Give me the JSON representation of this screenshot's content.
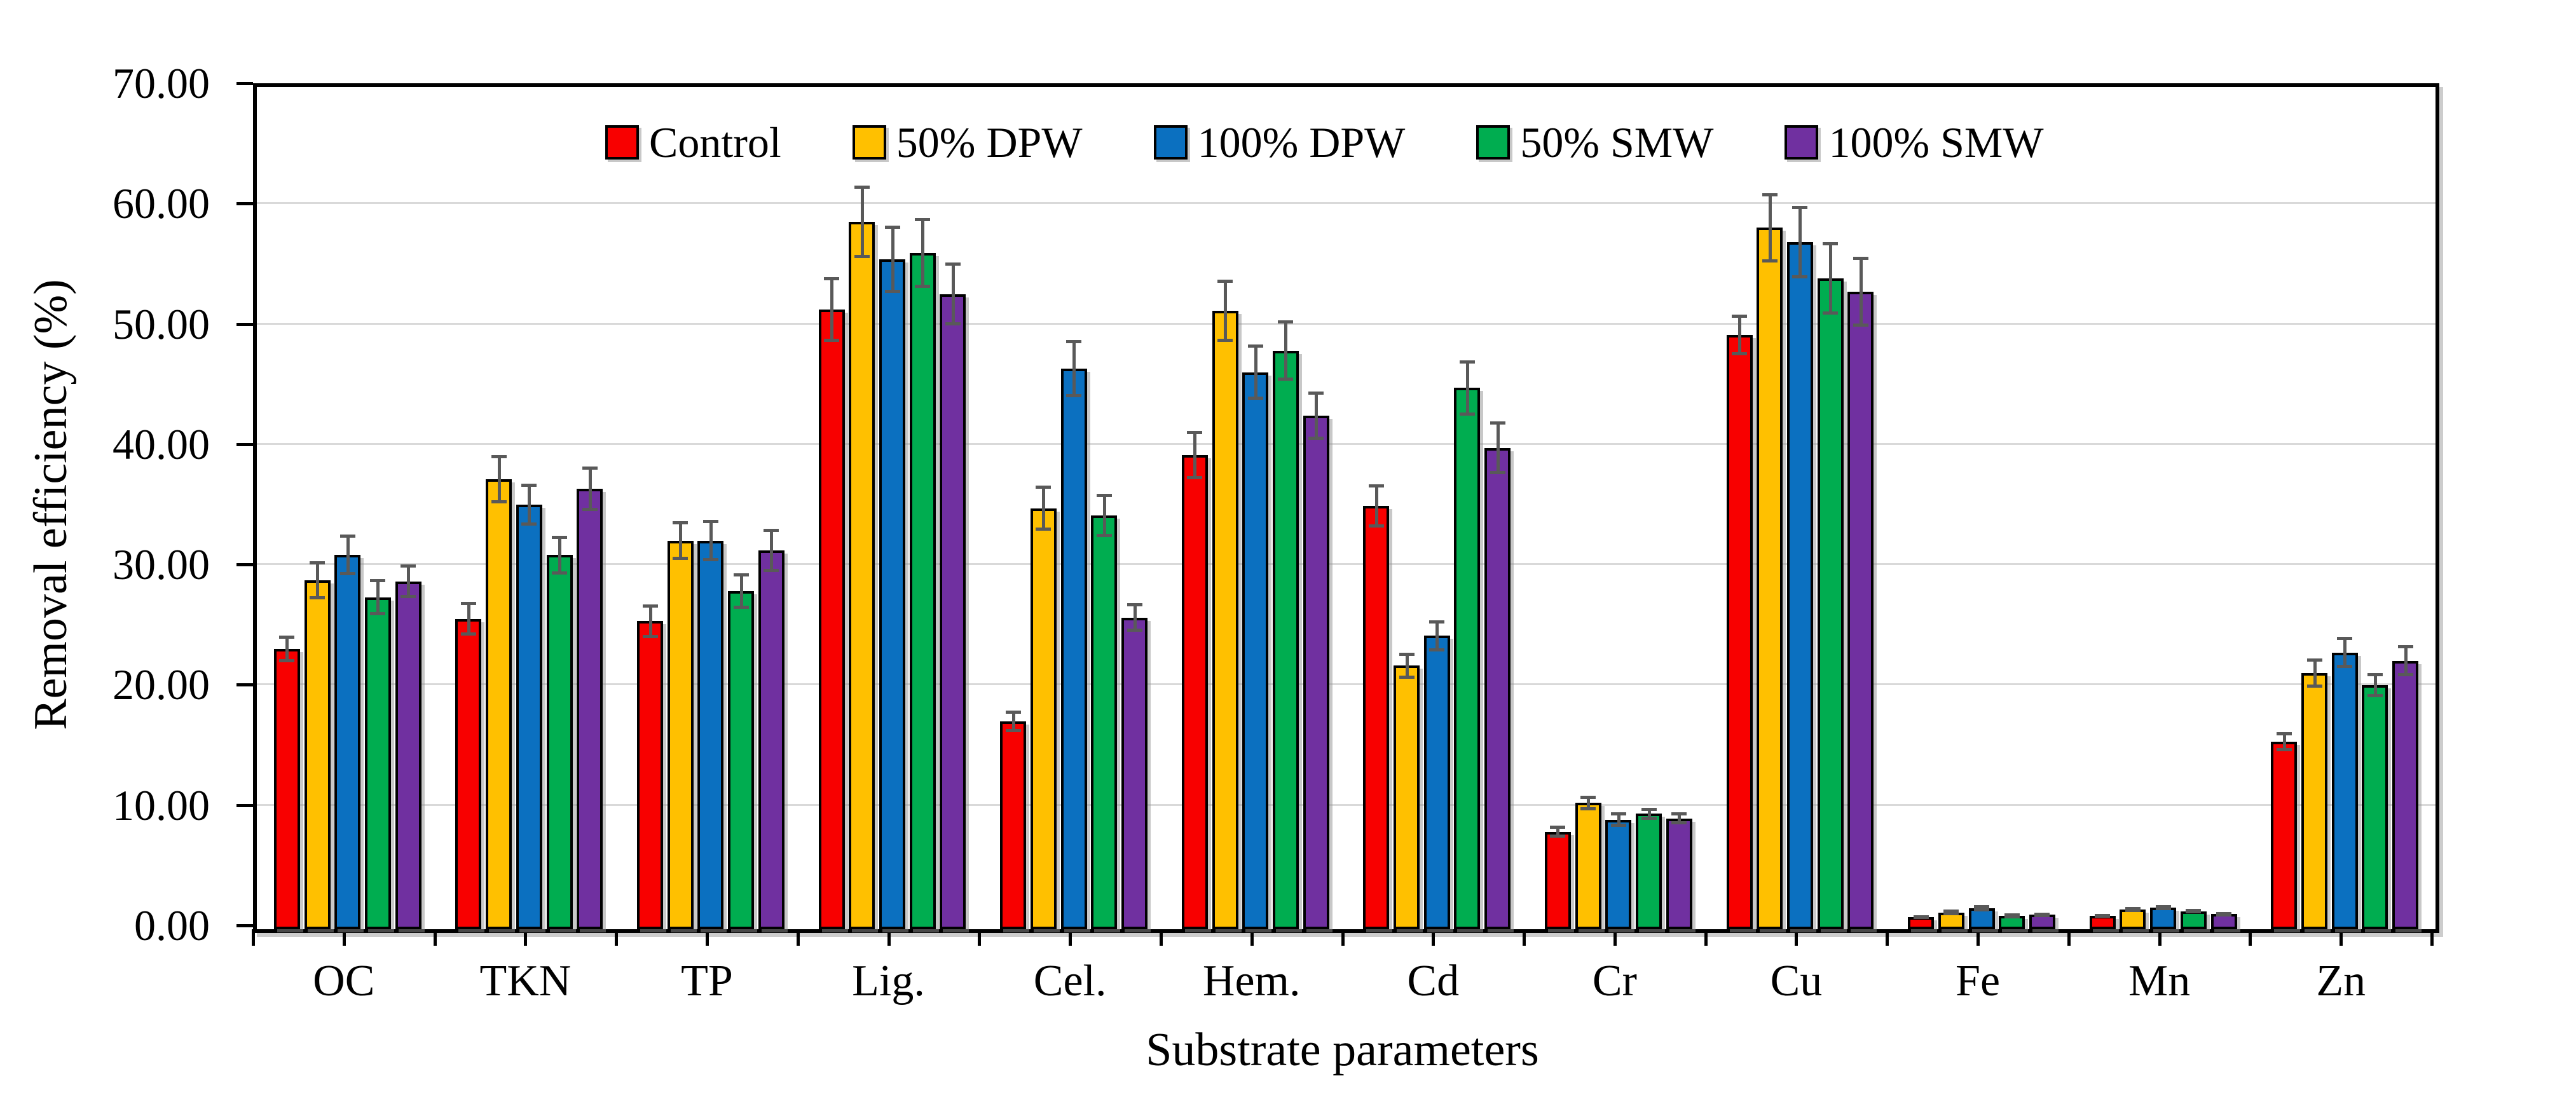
{
  "chart_data": {
    "type": "bar",
    "title": "",
    "xlabel": "Substrate parameters",
    "ylabel": "Removal efficiency (%)",
    "ylim": [
      0,
      70
    ],
    "ytick_step": 10,
    "ytick_labels": [
      "0.00",
      "10.00",
      "20.00",
      "30.00",
      "40.00",
      "50.00",
      "60.00",
      "70.00"
    ],
    "grid": "horizontal-light-gray",
    "legend_position": "top-inside-horizontal",
    "error_bars": true,
    "categories": [
      "OC",
      "TKN",
      "TP",
      "Lig.",
      "Cel.",
      "Hem.",
      "Cd",
      "Cr",
      "Cu",
      "Fe",
      "Mn",
      "Zn"
    ],
    "series": [
      {
        "name": "Control",
        "color": "#F80000",
        "values": [
          23.3,
          25.8,
          25.6,
          51.5,
          17.3,
          39.4,
          35.2,
          8.1,
          49.4,
          1.0,
          1.1,
          15.6
        ],
        "errors": [
          1.1,
          1.4,
          1.4,
          2.7,
          0.9,
          2.0,
          1.8,
          0.5,
          1.7,
          0.15,
          0.15,
          0.8
        ]
      },
      {
        "name": "50% DPW",
        "color": "#FFC000",
        "values": [
          29.0,
          37.4,
          32.3,
          58.8,
          35.0,
          51.4,
          21.9,
          10.5,
          58.3,
          1.4,
          1.65,
          21.3
        ],
        "errors": [
          1.6,
          2.0,
          1.6,
          3.0,
          1.9,
          2.6,
          1.1,
          0.6,
          2.9,
          0.25,
          0.2,
          1.2
        ]
      },
      {
        "name": "100% DPW",
        "color": "#0B70C0",
        "values": [
          31.1,
          35.3,
          32.3,
          55.7,
          46.6,
          46.3,
          24.4,
          9.1,
          57.1,
          1.75,
          1.8,
          23.0
        ],
        "errors": [
          1.7,
          1.75,
          1.7,
          2.8,
          2.4,
          2.3,
          1.3,
          0.6,
          3.0,
          0.25,
          0.2,
          1.3
        ]
      },
      {
        "name": "50% SMW",
        "color": "#00AD50",
        "values": [
          27.6,
          31.1,
          28.1,
          56.2,
          34.4,
          48.1,
          45.0,
          9.6,
          54.1,
          1.1,
          1.5,
          20.3
        ],
        "errors": [
          1.5,
          1.6,
          1.5,
          2.9,
          1.8,
          2.5,
          2.3,
          0.5,
          3.0,
          0.2,
          0.2,
          1.0
        ]
      },
      {
        "name": "100% SMW",
        "color": "#7030A0",
        "values": [
          28.9,
          36.6,
          31.5,
          52.8,
          25.9,
          42.7,
          40.0,
          9.2,
          53.0,
          1.2,
          1.25,
          22.3
        ],
        "errors": [
          1.4,
          1.85,
          1.8,
          2.6,
          1.2,
          2.0,
          2.2,
          0.5,
          2.9,
          0.2,
          0.17,
          1.3
        ]
      }
    ],
    "styles": {
      "axis_color": "#000000",
      "gridline_color": "#D9D9D9",
      "error_bar_color": "#595959",
      "background": "#FFFFFF"
    }
  }
}
